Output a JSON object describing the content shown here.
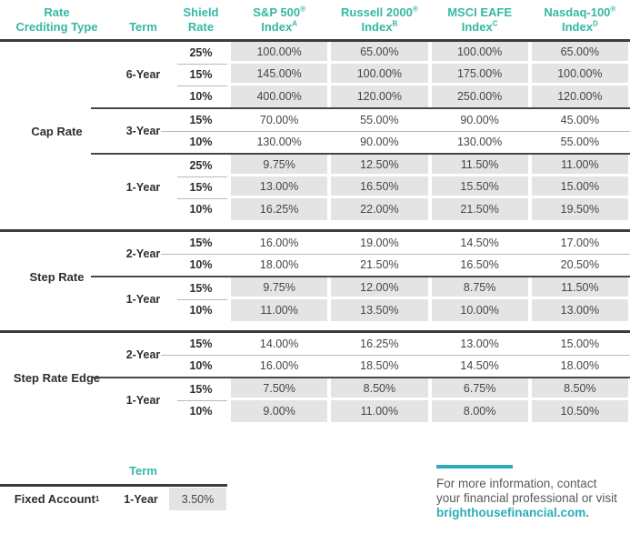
{
  "colors": {
    "teal": "#35b8a4",
    "linkteal": "#2aadb9",
    "cellgray": "#e4e4e4",
    "rule": "#3c3c3c",
    "text": "#454545"
  },
  "table": {
    "header": {
      "columns": [
        {
          "id": "rate-crediting-type",
          "lines": [
            {
              "text": "Rate"
            },
            {
              "text": "Crediting Type"
            }
          ]
        },
        {
          "id": "term",
          "lines": [
            {
              "text": "Term"
            }
          ]
        },
        {
          "id": "shield-rate",
          "lines": [
            {
              "text": "Shield"
            },
            {
              "text": "Rate"
            }
          ]
        },
        {
          "id": "sp500-index",
          "lines": [
            {
              "text": "S&P 500",
              "sup": "®"
            },
            {
              "text": "Index",
              "sup": "A"
            }
          ]
        },
        {
          "id": "russell2000-index",
          "lines": [
            {
              "text": "Russell 2000",
              "sup": "®"
            },
            {
              "text": "Index",
              "sup": "B"
            }
          ]
        },
        {
          "id": "msci-eafe-index",
          "lines": [
            {
              "text": "MSCI EAFE"
            },
            {
              "text": "Index",
              "sup": "C"
            }
          ]
        },
        {
          "id": "nasdaq100-index",
          "lines": [
            {
              "text": "Nasdaq-100",
              "sup": "®"
            },
            {
              "text": "Index",
              "sup": "D"
            }
          ]
        }
      ]
    },
    "sections": [
      {
        "label": "Cap Rate",
        "groups": [
          {
            "term": "6-Year",
            "shaded": true,
            "rows": [
              {
                "shield": "25%",
                "values": [
                  "100.00%",
                  "65.00%",
                  "100.00%",
                  "65.00%"
                ]
              },
              {
                "shield": "15%",
                "values": [
                  "145.00%",
                  "100.00%",
                  "175.00%",
                  "100.00%"
                ]
              },
              {
                "shield": "10%",
                "values": [
                  "400.00%",
                  "120.00%",
                  "250.00%",
                  "120.00%"
                ]
              }
            ]
          },
          {
            "term": "3-Year",
            "shaded": false,
            "rows": [
              {
                "shield": "15%",
                "values": [
                  "70.00%",
                  "55.00%",
                  "90.00%",
                  "45.00%"
                ]
              },
              {
                "shield": "10%",
                "values": [
                  "130.00%",
                  "90.00%",
                  "130.00%",
                  "55.00%"
                ]
              }
            ]
          },
          {
            "term": "1-Year",
            "shaded": true,
            "rows": [
              {
                "shield": "25%",
                "values": [
                  "9.75%",
                  "12.50%",
                  "11.50%",
                  "11.00%"
                ]
              },
              {
                "shield": "15%",
                "values": [
                  "13.00%",
                  "16.50%",
                  "15.50%",
                  "15.00%"
                ]
              },
              {
                "shield": "10%",
                "values": [
                  "16.25%",
                  "22.00%",
                  "21.50%",
                  "19.50%"
                ]
              }
            ]
          }
        ]
      },
      {
        "label": "Step Rate",
        "groups": [
          {
            "term": "2-Year",
            "shaded": false,
            "rows": [
              {
                "shield": "15%",
                "values": [
                  "16.00%",
                  "19.00%",
                  "14.50%",
                  "17.00%"
                ]
              },
              {
                "shield": "10%",
                "values": [
                  "18.00%",
                  "21.50%",
                  "16.50%",
                  "20.50%"
                ]
              }
            ]
          },
          {
            "term": "1-Year",
            "shaded": true,
            "rows": [
              {
                "shield": "15%",
                "values": [
                  "9.75%",
                  "12.00%",
                  "8.75%",
                  "11.50%"
                ]
              },
              {
                "shield": "10%",
                "values": [
                  "11.00%",
                  "13.50%",
                  "10.00%",
                  "13.00%"
                ]
              }
            ]
          }
        ]
      },
      {
        "label": "Step Rate Edge",
        "groups": [
          {
            "term": "2-Year",
            "shaded": false,
            "rows": [
              {
                "shield": "15%",
                "values": [
                  "14.00%",
                  "16.25%",
                  "13.00%",
                  "15.00%"
                ]
              },
              {
                "shield": "10%",
                "values": [
                  "16.00%",
                  "18.50%",
                  "14.50%",
                  "18.00%"
                ]
              }
            ]
          },
          {
            "term": "1-Year",
            "shaded": true,
            "rows": [
              {
                "shield": "15%",
                "values": [
                  "7.50%",
                  "8.50%",
                  "6.75%",
                  "8.50%"
                ]
              },
              {
                "shield": "10%",
                "values": [
                  "9.00%",
                  "11.00%",
                  "8.00%",
                  "10.50%"
                ]
              }
            ]
          }
        ]
      }
    ]
  },
  "fixed": {
    "term_header": "Term",
    "label": "Fixed Account",
    "sup": "1",
    "term": "1-Year",
    "rate": "3.50%"
  },
  "footer": {
    "line1": "For more information, contact",
    "line2": "your financial professional or visit",
    "link": "brighthousefinancial.com."
  }
}
